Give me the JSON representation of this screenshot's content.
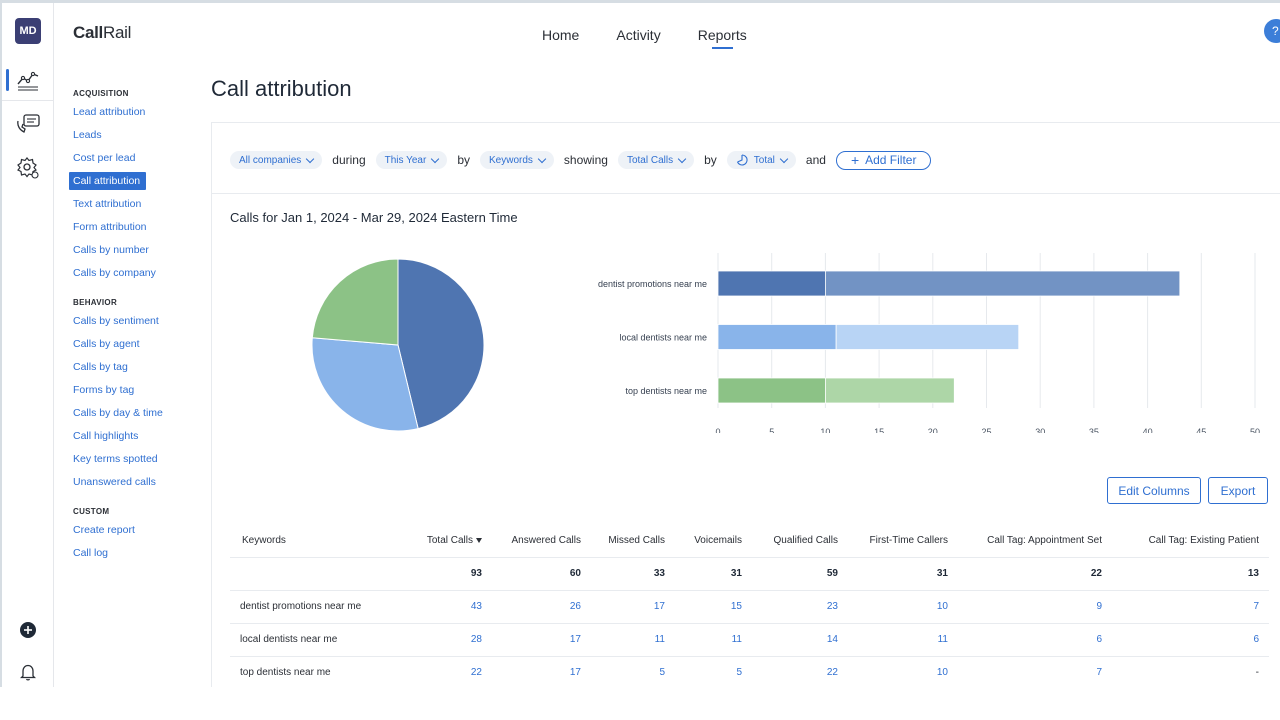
{
  "user": {
    "initials": "MD"
  },
  "brand": {
    "name_bold": "Call",
    "name_light": "Rail"
  },
  "topnav": {
    "items": [
      "Home",
      "Activity",
      "Reports"
    ],
    "active": "Reports"
  },
  "help": {
    "label": "?"
  },
  "sidebar": {
    "sections": [
      {
        "title": "ACQUISITION",
        "items": [
          "Lead attribution",
          "Leads",
          "Cost per lead",
          "Call attribution",
          "Text attribution",
          "Form attribution",
          "Calls by number",
          "Calls by company"
        ]
      },
      {
        "title": "BEHAVIOR",
        "items": [
          "Calls by sentiment",
          "Calls by agent",
          "Calls by tag",
          "Forms by tag",
          "Calls by day & time",
          "Call highlights",
          "Key terms spotted",
          "Unanswered calls"
        ]
      },
      {
        "title": "CUSTOM",
        "items": [
          "Create report",
          "Call log"
        ]
      }
    ],
    "active": "Call attribution"
  },
  "page": {
    "title": "Call attribution"
  },
  "filters": {
    "company": "All companies",
    "during": "during",
    "period": "This Year",
    "by1": "by",
    "group": "Keywords",
    "showing": "showing",
    "metric": "Total Calls",
    "by2": "by",
    "breakdown": "Total",
    "and": "and",
    "add_filter": "Add Filter"
  },
  "date_range": "Calls for Jan 1, 2024 - Mar 29, 2024 Eastern Time",
  "colors": {
    "accent": "#2f6fd1",
    "series": [
      "#4f75b1",
      "#89b4ea",
      "#8cc286"
    ],
    "series_light": [
      "#7293c4",
      "#b8d4f5",
      "#add6a7"
    ]
  },
  "chart_data": [
    {
      "type": "pie",
      "categories": [
        "dentist promotions near me",
        "local dentists near me",
        "top dentists near me"
      ],
      "values": [
        43,
        28,
        22
      ]
    },
    {
      "type": "bar",
      "orientation": "horizontal",
      "stacked": true,
      "categories": [
        "dentist promotions near me",
        "local dentists near me",
        "top dentists near me"
      ],
      "series": [
        {
          "values": [
            10,
            11,
            10
          ]
        },
        {
          "values": [
            33,
            17,
            12
          ]
        }
      ],
      "xlim": [
        0,
        50
      ],
      "xticks": [
        0,
        5,
        10,
        15,
        20,
        25,
        30,
        35,
        40,
        45,
        50
      ],
      "grid": true
    }
  ],
  "actions": {
    "edit_columns": "Edit Columns",
    "export": "Export"
  },
  "table": {
    "columns": [
      "Keywords",
      "Total Calls",
      "Answered Calls",
      "Missed Calls",
      "Voicemails",
      "Qualified Calls",
      "First-Time Callers",
      "Call Tag: Appointment Set",
      "Call Tag: Existing Patient"
    ],
    "total": [
      "",
      "93",
      "60",
      "33",
      "31",
      "59",
      "31",
      "22",
      "13"
    ],
    "rows": [
      [
        "dentist promotions near me",
        "43",
        "26",
        "17",
        "15",
        "23",
        "10",
        "9",
        "7"
      ],
      [
        "local dentists near me",
        "28",
        "17",
        "11",
        "11",
        "14",
        "11",
        "6",
        "6"
      ],
      [
        "top dentists near me",
        "22",
        "17",
        "5",
        "5",
        "22",
        "10",
        "7",
        "-"
      ]
    ]
  }
}
